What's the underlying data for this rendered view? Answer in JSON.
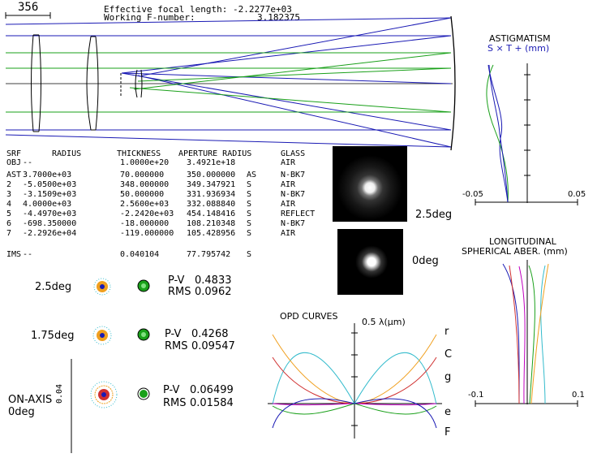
{
  "header": {
    "scale_bar_label": "356",
    "focal_label": "Effective focal length:",
    "focal_value": "-2.2277e+03",
    "fnum_label": "Working F-number:",
    "fnum_value": "3.182375"
  },
  "lens_table": {
    "headers": [
      "SRF",
      "RADIUS",
      "THICKNESS",
      "APERTURE RADIUS",
      "GLASS"
    ],
    "rows": [
      {
        "srf": "OBJ",
        "radius": "--",
        "thickness": "1.0000e+20",
        "aperture": "3.4921e+18",
        "flag": "",
        "glass": "AIR"
      },
      {
        "srf": "AST",
        "radius": "3.7000e+03",
        "thickness": "70.000000",
        "aperture": "350.000000",
        "flag": "AS",
        "glass": "N-BK7"
      },
      {
        "srf": "2",
        "radius": "-5.0500e+03",
        "thickness": "348.000000",
        "aperture": "349.347921",
        "flag": "S",
        "glass": "AIR"
      },
      {
        "srf": "3",
        "radius": "-3.1509e+03",
        "thickness": "50.000000",
        "aperture": "331.936934",
        "flag": "S",
        "glass": "N-BK7"
      },
      {
        "srf": "4",
        "radius": "4.0000e+03",
        "thickness": "2.5600e+03",
        "aperture": "332.088840",
        "flag": "S",
        "glass": "AIR"
      },
      {
        "srf": "5",
        "radius": "-4.4970e+03",
        "thickness": "-2.2420e+03",
        "aperture": "454.148416",
        "flag": "S",
        "glass": "REFLECT"
      },
      {
        "srf": "6",
        "radius": "-698.350000",
        "thickness": "-18.000000",
        "aperture": "108.210348",
        "flag": "S",
        "glass": "N-BK7"
      },
      {
        "srf": "7",
        "radius": "-2.2926e+04",
        "thickness": "-119.000000",
        "aperture": "105.428956",
        "flag": "S",
        "glass": "AIR"
      },
      {
        "srf": "IMS",
        "radius": "--",
        "thickness": "0.040104",
        "aperture": "77.795742",
        "flag": "S",
        "glass": ""
      }
    ]
  },
  "psf": {
    "label_top": "2.5deg",
    "label_bottom": "0deg"
  },
  "spots": [
    {
      "field": "2.5deg",
      "pv_label": "P-V",
      "pv": "0.4833",
      "rms_label": "RMS",
      "rms": "0.0962"
    },
    {
      "field": "1.75deg",
      "pv_label": "P-V",
      "pv": "0.4268",
      "rms_label": "RMS",
      "rms": "0.09547"
    },
    {
      "field": "ON-AXIS",
      "field2": "0deg",
      "pv_label": "P-V",
      "pv": "0.06499",
      "rms_label": "RMS",
      "rms": "0.01584"
    }
  ],
  "spot_scale_label": "0.04",
  "astigmatism": {
    "title": "ASTIGMATISM",
    "legend": "S × T + (mm)",
    "xmin_label": "-0.05",
    "xmax_label": "0.05"
  },
  "longitudinal": {
    "title1": "LONGITUDINAL",
    "title2": "SPHERICAL ABER. (mm)",
    "xmin_label": "-0.1",
    "xmax_label": "0.1"
  },
  "opd": {
    "title": "OPD CURVES",
    "scale_label": "0.5 λ(μm)",
    "wavelengths": [
      "r",
      "C",
      "g",
      "e",
      "F"
    ]
  },
  "colors": {
    "blue": "#1a1ab4",
    "green": "#1aa01a",
    "cyan": "#33bbcc",
    "orange": "#f0a020",
    "red": "#d03030",
    "magenta": "#c000c0"
  }
}
